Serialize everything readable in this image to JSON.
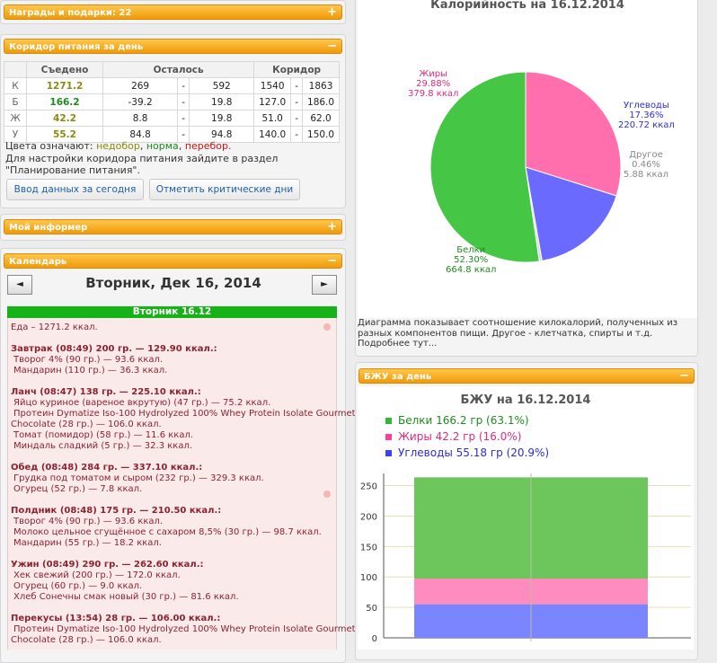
{
  "left": {
    "awards": {
      "title": "Награды и подарки: 22",
      "toggle": "+"
    },
    "corridor": {
      "title": "Коридор питания за день",
      "toggle": "−",
      "headers": [
        "",
        "Съедено",
        "Осталось",
        "Коридор"
      ],
      "rows": [
        {
          "label": "К",
          "eaten": "1271.2",
          "rem_a": "269",
          "rem_sep": "-",
          "rem_b": "592",
          "cor_a": "1540",
          "cor_sep": "-",
          "cor_b": "1863"
        },
        {
          "label": "Б",
          "eaten": "166.2",
          "rem_a": "-39.2",
          "rem_sep": "-",
          "rem_b": "19.8",
          "cor_a": "127.0",
          "cor_sep": "-",
          "cor_b": "186.0"
        },
        {
          "label": "Ж",
          "eaten": "42.2",
          "rem_a": "8.8",
          "rem_sep": "-",
          "rem_b": "19.8",
          "cor_a": "51.0",
          "cor_sep": "-",
          "cor_b": "62.0"
        },
        {
          "label": "У",
          "eaten": "55.2",
          "rem_a": "84.8",
          "rem_sep": "-",
          "rem_b": "94.8",
          "cor_a": "140.0",
          "cor_sep": "-",
          "cor_b": "150.0"
        }
      ],
      "colors_prefix": "Цвета означают:",
      "color_under": "недобор",
      "color_norm": "норма",
      "color_over": "перебор.",
      "sep1": ", ",
      "sep2": ", ",
      "note_line1": "Для настройки коридора питания зайдите в раздел",
      "note_line2": "\"Планирование питания\".",
      "btn_today": "Ввод данных за сегодня",
      "btn_critical": "Отметить критические дни",
      "color_under_hex": "#8a8a10",
      "color_norm_hex": "#1d8a1d",
      "color_over_hex": "#c81414"
    },
    "informer": {
      "title": "Мой информер",
      "toggle": "+"
    },
    "calendar": {
      "title": "Календарь",
      "toggle": "−",
      "prev": "◄",
      "next": "►",
      "date_title": "Вторник, Дек 16, 2014",
      "day_bar": "Вторник 16.12",
      "lines": [
        {
          "text": "Еда – 1271.2 ккал.",
          "kind": "meal"
        },
        {
          "text": "Завтрак (08:49) 200 гр. — 129.90 ккал.:",
          "kind": "meal"
        },
        {
          "text": "Творог 4% (90 гр.) — 93.6 ккал.",
          "kind": "item"
        },
        {
          "text": "Мандарин (110 гр.) — 36.3 ккал.",
          "kind": "item"
        },
        {
          "text": "Ланч (08:47) 138 гр. — 225.10 ккал.:",
          "kind": "meal"
        },
        {
          "text": "Яйцо куриное (вареное вкрутую) (47 гр.) — 75.2 ккал.",
          "kind": "item"
        },
        {
          "text": "Протеин Dymatize Iso-100 Hydrolyzed 100% Whey Protein Isolate Gourmet",
          "kind": "item"
        },
        {
          "text": "Chocolate (28 гр.) — 106.0 ккал.",
          "kind": "item"
        },
        {
          "text": "Томат (помидор) (58 гр.) — 11.6 ккал.",
          "kind": "item"
        },
        {
          "text": "Миндаль сладкий (5 гр.) — 32.3 ккал.",
          "kind": "item"
        },
        {
          "text": "Обед (08:48) 284 гр. — 337.10 ккал.:",
          "kind": "meal"
        },
        {
          "text": "Грудка под томатом и сыром (232 гр.) — 329.3 ккал.",
          "kind": "item"
        },
        {
          "text": "Огурец (52 гр.) — 7.8 ккал.",
          "kind": "item"
        },
        {
          "text": "Полдник (08:48) 175 гр. — 210.50 ккал.:",
          "kind": "meal"
        },
        {
          "text": "Творог 4% (90 гр.) — 93.6 ккал.",
          "kind": "item"
        },
        {
          "text": "Молоко цельное сгущённое с сахаром 8,5% (30 гр.) — 98.7 ккал.",
          "kind": "item"
        },
        {
          "text": "Мандарин (55 гр.) — 18.2 ккал.",
          "kind": "item"
        },
        {
          "text": "Ужин (08:49) 290 гр. — 262.60 ккал.:",
          "kind": "meal"
        },
        {
          "text": "Хек свежий (200 гр.) — 172.0 ккал.",
          "kind": "item"
        },
        {
          "text": "Огурец (60 гр.) — 9.0 ккал.",
          "kind": "item"
        },
        {
          "text": "Хлеб Сонечны смак новый (30 гр.) — 81.6 ккал.",
          "kind": "item"
        },
        {
          "text": "Перекусы (13:54) 28 гр. — 106.00 ккал.:",
          "kind": "meal"
        },
        {
          "text": "Протеин Dymatize Iso-100 Hydrolyzed 100% Whey Protein Isolate Gourmet",
          "kind": "item"
        },
        {
          "text": "Chocolate (28 гр.) — 106.0 ккал.",
          "kind": "item"
        }
      ]
    }
  },
  "right": {
    "calorie_caption": "Диаграмма показывает соотношение килокалорий, полученных из разных компонентов пищи. Другое - клетчатка, спирты и т.д. Подробнее тут...",
    "bju_panel_title": "БЖУ за день",
    "bju_panel_toggle": "−"
  },
  "chart_data": [
    {
      "type": "pie",
      "title": "Калорийность на 16.12.2014",
      "slices": [
        {
          "name": "Жиры",
          "percent": "29.88%",
          "kcal": "379.8 ккал",
          "value": 29.88,
          "color": "#ff6fae"
        },
        {
          "name": "Углеводы",
          "percent": "17.36%",
          "kcal": "220.72 ккал",
          "value": 17.36,
          "color": "#6a6aff"
        },
        {
          "name": "Другое",
          "percent": "0.46%",
          "kcal": "5.88 ккал",
          "value": 0.46,
          "color": "#d8d8d8"
        },
        {
          "name": "Белки",
          "percent": "52.30%",
          "kcal": "664.8 ккал",
          "value": 52.3,
          "color": "#45c745"
        }
      ]
    },
    {
      "type": "bar",
      "stacked": true,
      "title": "БЖУ на 16.12.2014",
      "legend": [
        {
          "text": "Белки 166.2 гр (63.1%)",
          "color": "#33b833",
          "textcolor": "#1f8a1f"
        },
        {
          "text": "Жиры 42.2 гр (16.0%)",
          "color": "#ff3d9a",
          "textcolor": "#e0297f"
        },
        {
          "text": "Углеводы 55.18 гр (20.9%)",
          "color": "#3d3dff",
          "textcolor": "#2b2bcf"
        }
      ],
      "series": [
        {
          "name": "Углеводы",
          "value": 55.18,
          "color": "#7a85ff"
        },
        {
          "name": "Жиры",
          "value": 42.2,
          "color": "#ff8cbf"
        },
        {
          "name": "Белки",
          "value": 166.2,
          "color": "#6cc65c"
        }
      ],
      "ylim": [
        0,
        270
      ],
      "yticks": [
        "0",
        "50",
        "100",
        "150",
        "200",
        "250"
      ],
      "ytick_values": [
        0,
        50,
        100,
        150,
        200,
        250
      ]
    }
  ]
}
